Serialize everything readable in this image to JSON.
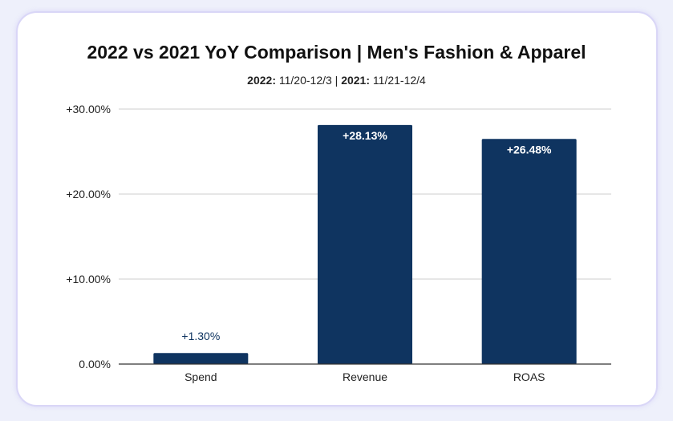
{
  "chart_data": {
    "type": "bar",
    "title": "2022 vs 2021 YoY Comparison | Men's Fashion & Apparel",
    "subtitle": {
      "part1_label": "2022:",
      "part1_value": " 11/20-12/3 | ",
      "part2_label": "2021:",
      "part2_value": " 11/21-12/4"
    },
    "categories": [
      "Spend",
      "Revenue",
      "ROAS"
    ],
    "values": [
      1.3,
      28.13,
      26.48
    ],
    "data_labels": [
      "+1.30%",
      "+28.13%",
      "+26.48%"
    ],
    "y_ticks": [
      0,
      10,
      20,
      30
    ],
    "y_tick_labels": [
      "0.00%",
      "+10.00%",
      "+20.00%",
      "+30.00%"
    ],
    "ylim": [
      0,
      30
    ],
    "grid": true,
    "colors": {
      "bar": "#0f3460",
      "label_inside": "#ffffff",
      "label_outside": "#0f3460",
      "grid": "#cccccc",
      "axis": "#333333"
    }
  }
}
